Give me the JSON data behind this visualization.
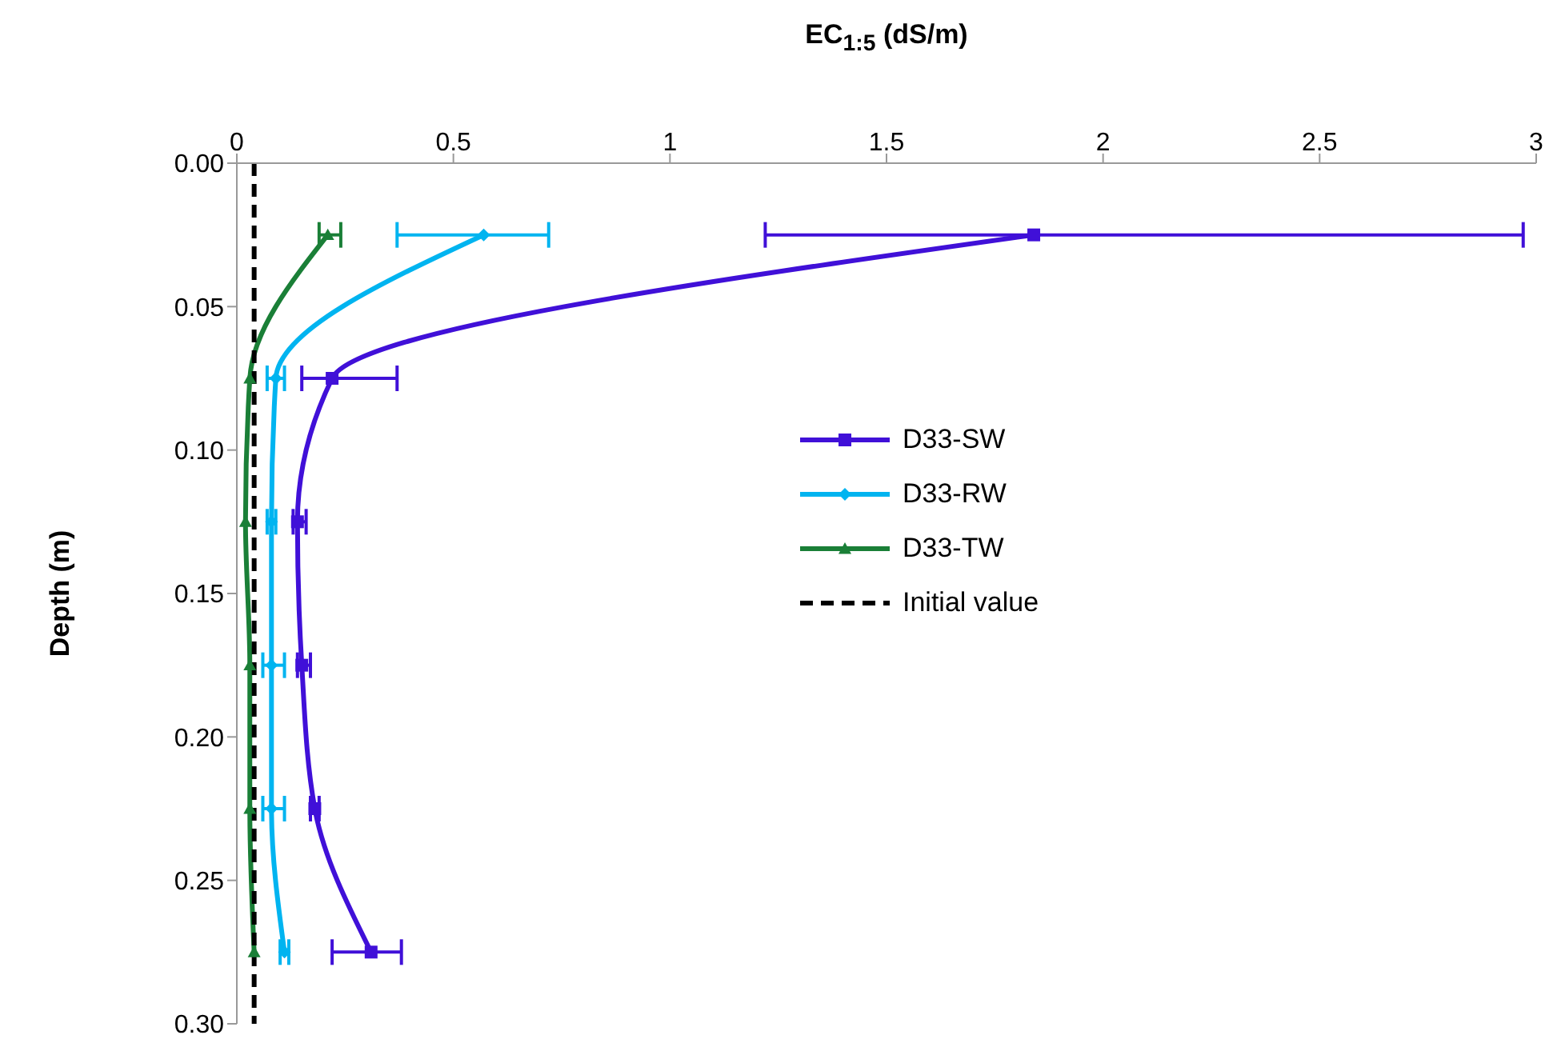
{
  "chart_data": {
    "type": "line",
    "xlabel": "EC$_{1:5}$ (dS/m)",
    "ylabel": "Depth (m)",
    "xlim": [
      0,
      3
    ],
    "xticks": [
      0,
      0.5,
      1,
      1.5,
      2,
      2.5,
      3
    ],
    "ylim": [
      0.3,
      0
    ],
    "yticks": [
      {
        "value": 0,
        "label": "0.00"
      },
      {
        "value": 0.05,
        "label": "0.05"
      },
      {
        "value": 0.1,
        "label": "0.10"
      },
      {
        "value": 0.15,
        "label": "0.15"
      },
      {
        "value": 0.2,
        "label": "0.20"
      },
      {
        "value": 0.25,
        "label": "0.25"
      },
      {
        "value": 0.3,
        "label": "0.30"
      }
    ],
    "series": [
      {
        "name": "D33-SW",
        "color": "#4010d8",
        "marker": "square",
        "x": [
          1.84,
          0.22,
          0.14,
          0.15,
          0.18,
          0.31
        ],
        "values": [
          0.025,
          0.075,
          0.125,
          0.175,
          0.225,
          0.275
        ],
        "xerrors": [
          [
            1.22,
            2.97
          ],
          [
            0.15,
            0.37
          ],
          [
            0.13,
            0.16
          ],
          [
            0.14,
            0.17
          ],
          [
            0.17,
            0.19
          ],
          [
            0.22,
            0.38
          ]
        ]
      },
      {
        "name": "D33-RW",
        "color": "#00b4f0",
        "marker": "diamond",
        "x": [
          0.57,
          0.09,
          0.08,
          0.08,
          0.08,
          0.11
        ],
        "values": [
          0.025,
          0.075,
          0.125,
          0.175,
          0.225,
          0.275
        ],
        "xerrors": [
          [
            0.37,
            0.72
          ],
          [
            0.07,
            0.11
          ],
          [
            0.07,
            0.09
          ],
          [
            0.06,
            0.11
          ],
          [
            0.06,
            0.11
          ],
          [
            0.1,
            0.12
          ]
        ]
      },
      {
        "name": "D33-TW",
        "color": "#1a7f37",
        "marker": "triangle",
        "x": [
          0.21,
          0.03,
          0.02,
          0.03,
          0.03,
          0.04
        ],
        "values": [
          0.025,
          0.075,
          0.125,
          0.175,
          0.225,
          0.275
        ],
        "xerrors": [
          [
            0.19,
            0.24
          ],
          null,
          null,
          null,
          null,
          null
        ]
      },
      {
        "name": "Initial value",
        "color": "#000000",
        "marker": "none",
        "line_style": "dashed",
        "x": [
          0.04,
          0.04
        ],
        "values": [
          0,
          0.3
        ]
      }
    ],
    "legend": "right"
  }
}
